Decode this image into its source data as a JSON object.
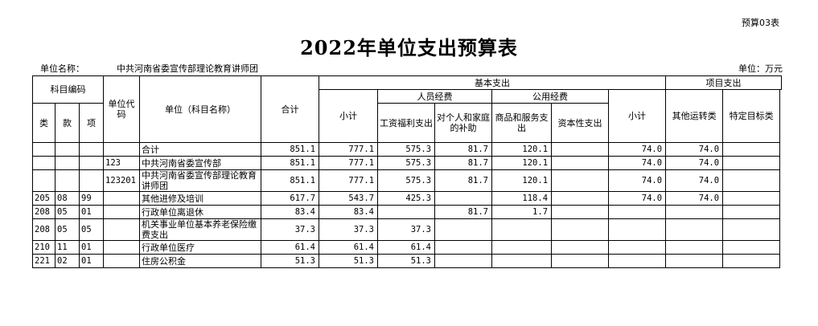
{
  "doc": {
    "form_no": "预算03表",
    "title": "2022年单位支出预算表",
    "unit_name_label": "单位名称：",
    "unit_name": "中共河南省委宣传部理论教育讲师团",
    "currency": "单位：万元"
  },
  "header": {
    "subject_code": "科目编码",
    "lei": "类",
    "kuan": "款",
    "xiang": "项",
    "unit_code": "单位代码",
    "unit_name": "单位（科目名称）",
    "total": "合计",
    "basic": "基本支出",
    "personnel": "人员经费",
    "public": "公用经费",
    "basic_subtotal": "小计",
    "salary": "工资福利支出",
    "personal_family": "对个人和家庭的补助",
    "goods_services": "商品和服务支出",
    "capital": "资本性支出",
    "project": "项目支出",
    "project_subtotal": "小计",
    "other_transfer": "其他运转类",
    "specific_target": "特定目标类"
  },
  "rows": [
    {
      "lei": "",
      "kuan": "",
      "xiang": "",
      "unit_code": "",
      "name": "合计",
      "total": "851.1",
      "basic_subtotal": "777.1",
      "salary": "575.3",
      "personal": "81.7",
      "goods": "120.1",
      "capital": "",
      "proj_subtotal": "74.0",
      "other": "74.0",
      "specific": ""
    },
    {
      "lei": "",
      "kuan": "",
      "xiang": "",
      "unit_code": "123",
      "name": "中共河南省委宣传部",
      "total": "851.1",
      "basic_subtotal": "777.1",
      "salary": "575.3",
      "personal": "81.7",
      "goods": "120.1",
      "capital": "",
      "proj_subtotal": "74.0",
      "other": "74.0",
      "specific": ""
    },
    {
      "lei": "",
      "kuan": "",
      "xiang": "",
      "unit_code": "123201",
      "name": "中共河南省委宣传部理论教育讲师团",
      "total": "851.1",
      "basic_subtotal": "777.1",
      "salary": "575.3",
      "personal": "81.7",
      "goods": "120.1",
      "capital": "",
      "proj_subtotal": "74.0",
      "other": "74.0",
      "specific": ""
    },
    {
      "lei": "205",
      "kuan": "08",
      "xiang": "99",
      "unit_code": "",
      "name": "其他进修及培训",
      "total": "617.7",
      "basic_subtotal": "543.7",
      "salary": "425.3",
      "personal": "",
      "goods": "118.4",
      "capital": "",
      "proj_subtotal": "74.0",
      "other": "74.0",
      "specific": ""
    },
    {
      "lei": "208",
      "kuan": "05",
      "xiang": "01",
      "unit_code": "",
      "name": "行政单位离退休",
      "total": "83.4",
      "basic_subtotal": "83.4",
      "salary": "",
      "personal": "81.7",
      "goods": "1.7",
      "capital": "",
      "proj_subtotal": "",
      "other": "",
      "specific": ""
    },
    {
      "lei": "208",
      "kuan": "05",
      "xiang": "05",
      "unit_code": "",
      "name": "机关事业单位基本养老保险缴费支出",
      "total": "37.3",
      "basic_subtotal": "37.3",
      "salary": "37.3",
      "personal": "",
      "goods": "",
      "capital": "",
      "proj_subtotal": "",
      "other": "",
      "specific": ""
    },
    {
      "lei": "210",
      "kuan": "11",
      "xiang": "01",
      "unit_code": "",
      "name": "行政单位医疗",
      "total": "61.4",
      "basic_subtotal": "61.4",
      "salary": "61.4",
      "personal": "",
      "goods": "",
      "capital": "",
      "proj_subtotal": "",
      "other": "",
      "specific": ""
    },
    {
      "lei": "221",
      "kuan": "02",
      "xiang": "01",
      "unit_code": "",
      "name": "住房公积金",
      "total": "51.3",
      "basic_subtotal": "51.3",
      "salary": "51.3",
      "personal": "",
      "goods": "",
      "capital": "",
      "proj_subtotal": "",
      "other": "",
      "specific": ""
    }
  ]
}
